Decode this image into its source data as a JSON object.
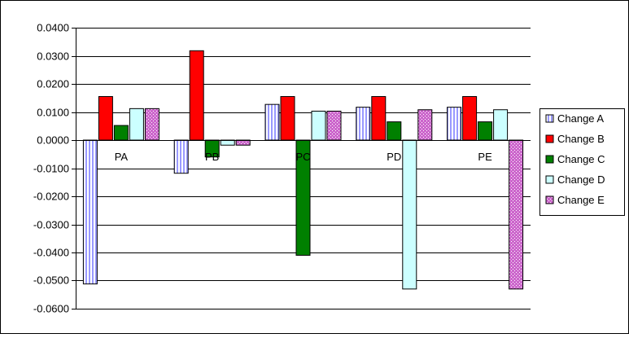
{
  "chart_data": {
    "type": "bar",
    "title": "",
    "xlabel": "",
    "ylabel": "",
    "categories": [
      "PA",
      "PB",
      "PC",
      "PD",
      "PE"
    ],
    "ylim": [
      -0.06,
      0.04
    ],
    "ytick_step": 0.01,
    "ytick_labels": [
      "0.0400",
      "0.0300",
      "0.0200",
      "0.0100",
      "0.0000",
      "-0.0100",
      "-0.0200",
      "-0.0300",
      "-0.0400",
      "-0.0500",
      "-0.0600"
    ],
    "grid": true,
    "legend_position": "right",
    "series": [
      {
        "name": "Change A",
        "color": "#9999ff",
        "pattern": "vertical-stripes",
        "values": [
          -0.0512,
          -0.0118,
          0.0127,
          0.0117,
          0.0117
        ]
      },
      {
        "name": "Change B",
        "color": "#ff0000",
        "pattern": "solid",
        "values": [
          0.0155,
          0.0318,
          0.0155,
          0.0155,
          0.0155
        ]
      },
      {
        "name": "Change C",
        "color": "#008000",
        "pattern": "solid",
        "values": [
          0.0052,
          -0.006,
          -0.041,
          0.0065,
          0.0065
        ]
      },
      {
        "name": "Change D",
        "color": "#ccffff",
        "pattern": "solid",
        "values": [
          0.0112,
          -0.0018,
          0.0103,
          -0.053,
          0.0108
        ]
      },
      {
        "name": "Change E",
        "color": "#cc66cc",
        "pattern": "dots",
        "values": [
          0.0112,
          -0.0018,
          0.0103,
          0.0108,
          -0.053
        ]
      }
    ]
  }
}
